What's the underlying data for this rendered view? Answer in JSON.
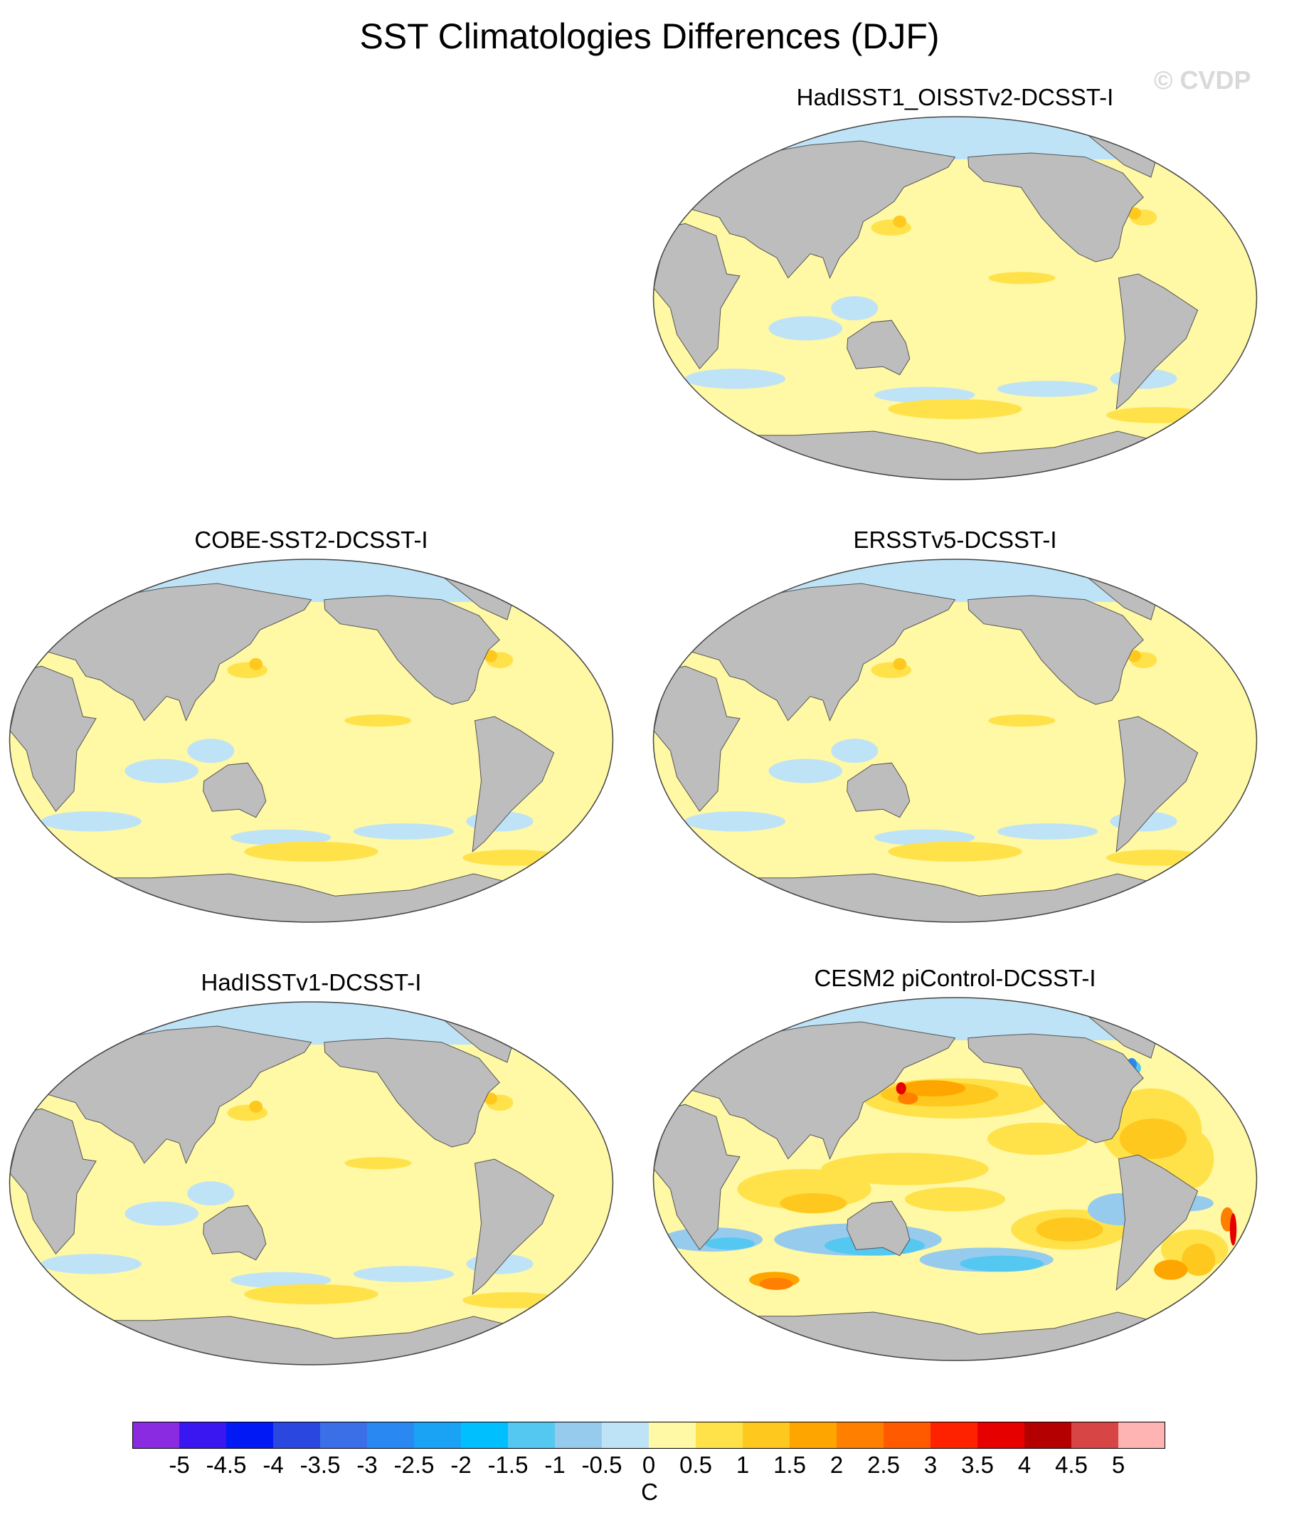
{
  "title": "SST Climatologies Differences (DJF)",
  "watermark": "© CVDP",
  "panels": [
    {
      "id": "hadisst1-oisstv2",
      "title": "HadISST1_OISSTv2-DCSST-I",
      "pattern": "mild"
    },
    {
      "id": "cobe-sst2",
      "title": "COBE-SST2-DCSST-I",
      "pattern": "mild"
    },
    {
      "id": "ersstv5",
      "title": "ERSSTv5-DCSST-I",
      "pattern": "mild"
    },
    {
      "id": "hadisstv1",
      "title": "HadISSTv1-DCSST-I",
      "pattern": "mild"
    },
    {
      "id": "cesm2-picontrol",
      "title": "CESM2 piControl-DCSST-I",
      "pattern": "strong"
    }
  ],
  "colorbar": {
    "units": "C",
    "levels": [
      "-5",
      "-4.5",
      "-4",
      "-3.5",
      "-3",
      "-2.5",
      "-2",
      "-1.5",
      "-1",
      "-0.5",
      "0",
      "0.5",
      "1",
      "1.5",
      "2",
      "2.5",
      "3",
      "3.5",
      "4",
      "4.5",
      "5"
    ],
    "colors": [
      "#8a2be2",
      "#3a16f0",
      "#0019f5",
      "#2a47e0",
      "#3a6fe8",
      "#2a88f2",
      "#1aa3f5",
      "#00bfff",
      "#55c8f2",
      "#96cbee",
      "#bfe3f6",
      "#fff8a5",
      "#ffe24a",
      "#ffc81e",
      "#ffa500",
      "#ff7f00",
      "#ff5a00",
      "#ff2200",
      "#e60000",
      "#b40000",
      "#d84545",
      "#ffb4b4"
    ]
  },
  "colors": {
    "land": "#bdbdbd",
    "ice_region": "#bfe3f6",
    "ocean_base": "#fff8a5"
  }
}
